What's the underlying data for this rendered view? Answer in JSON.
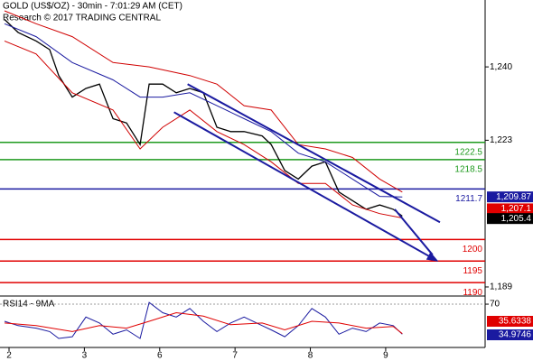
{
  "chart_data": [
    {
      "type": "line",
      "title": "GOLD (US$/OZ) - 30min - 7:01:29 AM (CET)",
      "subtitle": "Research © 2017 TRADING CENTRAL",
      "xlim": [
        -0.12,
        6.32
      ],
      "ylim": [
        1186.9,
        1255.5
      ],
      "yticks": [
        {
          "value": 1240,
          "label": "1,240"
        },
        {
          "value": 1223,
          "label": "1,223"
        },
        {
          "value": 1189,
          "label": "1,189"
        }
      ],
      "series": [
        {
          "color": "#000000",
          "width": 1.3,
          "x": [
            -0.06,
            0.12,
            0.36,
            0.54,
            0.66,
            0.84,
            1.02,
            1.2,
            1.38,
            1.56,
            1.74,
            1.86,
            2.04,
            2.22,
            2.4,
            2.58,
            2.76,
            2.94,
            3.12,
            3.36,
            3.48,
            3.66,
            3.84,
            4.02,
            4.2,
            4.38,
            4.56,
            4.74,
            4.92,
            5.1,
            5.22
          ],
          "values": [
            1251,
            1248,
            1246,
            1244,
            1238,
            1233,
            1235,
            1236,
            1228,
            1227,
            1222,
            1236,
            1236,
            1234,
            1235,
            1234,
            1226,
            1225,
            1225,
            1224,
            1222,
            1216,
            1214,
            1217,
            1218,
            1211,
            1209,
            1207,
            1208,
            1207,
            1205.4
          ]
        },
        {
          "color": "#1a1aa0",
          "width": 1,
          "x": [
            -0.06,
            0.36,
            0.84,
            1.38,
            1.74,
            2.04,
            2.4,
            2.76,
            3.12,
            3.48,
            3.84,
            4.2,
            4.56,
            4.92,
            5.22
          ],
          "values": [
            1250,
            1247,
            1241,
            1237,
            1233,
            1233,
            1234,
            1231,
            1228,
            1225,
            1220,
            1218,
            1214,
            1210,
            1209.87
          ]
        },
        {
          "color": "#d00000",
          "width": 1,
          "x": [
            -0.06,
            0.36,
            0.84,
            1.38,
            1.86,
            2.4,
            2.76,
            3.12,
            3.48,
            3.84,
            4.2,
            4.56,
            4.92,
            5.22
          ],
          "values": [
            1253,
            1250,
            1247,
            1241,
            1240,
            1238,
            1236,
            1231,
            1230,
            1222,
            1221,
            1219,
            1214,
            1211
          ]
        },
        {
          "color": "#d00000",
          "width": 1,
          "x": [
            -0.06,
            0.36,
            0.84,
            1.38,
            1.74,
            2.04,
            2.4,
            2.76,
            3.12,
            3.48,
            3.84,
            4.2,
            4.56,
            4.92,
            5.22
          ],
          "values": [
            1246,
            1243,
            1234,
            1230,
            1221,
            1226,
            1230,
            1225,
            1222,
            1218,
            1213,
            1213,
            1208,
            1206,
            1205
          ]
        }
      ],
      "levels": [
        {
          "value": 1222.5,
          "color": "#1e9a1e"
        },
        {
          "value": 1218.5,
          "color": "#1e9a1e"
        },
        {
          "value": 1211.7,
          "color": "#1a1aa0"
        },
        {
          "value": 1200,
          "color": "#e00000"
        },
        {
          "value": 1195,
          "color": "#e00000"
        },
        {
          "value": 1190,
          "color": "#e00000"
        }
      ],
      "trendlines": [
        {
          "color": "#1a1aa0",
          "x": [
            2.37,
            5.72
          ],
          "values": [
            1236.0,
            1204.0
          ]
        },
        {
          "color": "#1a1aa0",
          "x": [
            2.19,
            5.67
          ],
          "values": [
            1229.5,
            1195.2
          ]
        }
      ],
      "last_values": [
        {
          "value": 1209.87,
          "label": "1,209.87",
          "color": "#1a1aa0"
        },
        {
          "value": 1207.1,
          "label": "1,207.1",
          "color": "#e00000"
        },
        {
          "value": 1205.4,
          "label": "1,205.4",
          "color": "#000000"
        }
      ]
    },
    {
      "type": "line",
      "title": "RSI14 - 9MA",
      "xlim": [
        -0.12,
        6.32
      ],
      "xticks": [
        {
          "value": 0,
          "label": "2"
        },
        {
          "value": 1,
          "label": "3"
        },
        {
          "value": 2,
          "label": "6"
        },
        {
          "value": 3,
          "label": "7"
        },
        {
          "value": 4,
          "label": "8"
        },
        {
          "value": 5,
          "label": "9"
        }
      ],
      "ylim": [
        19.5,
        77.4
      ],
      "yticks": [
        70
      ],
      "series": [
        {
          "color": "#1a1aa0",
          "width": 1,
          "x": [
            -0.06,
            0.12,
            0.36,
            0.54,
            0.66,
            0.84,
            1.02,
            1.2,
            1.38,
            1.56,
            1.74,
            1.86,
            2.04,
            2.22,
            2.4,
            2.58,
            2.76,
            2.94,
            3.12,
            3.36,
            3.48,
            3.66,
            3.84,
            4.02,
            4.2,
            4.38,
            4.56,
            4.74,
            4.92,
            5.1,
            5.22
          ],
          "values": [
            50,
            45,
            42,
            38,
            30,
            32,
            55,
            48,
            35,
            40,
            30,
            72,
            60,
            55,
            65,
            50,
            38,
            48,
            55,
            45,
            40,
            32,
            45,
            65,
            55,
            35,
            42,
            38,
            48,
            45,
            34.9746
          ]
        },
        {
          "color": "#e00000",
          "width": 1,
          "x": [
            -0.06,
            0.36,
            0.84,
            1.2,
            1.56,
            1.86,
            2.22,
            2.58,
            2.94,
            3.36,
            3.66,
            4.02,
            4.38,
            4.74,
            5.1,
            5.22
          ],
          "values": [
            48,
            45,
            38,
            45,
            42,
            50,
            60,
            56,
            46,
            48,
            40,
            50,
            48,
            42,
            44,
            35.6338
          ]
        }
      ],
      "last_values": [
        {
          "value": 35.6338,
          "label": "35.6338",
          "color": "#e00000"
        },
        {
          "value": 34.9746,
          "label": "34.9746",
          "color": "#1a1aa0"
        }
      ]
    }
  ]
}
